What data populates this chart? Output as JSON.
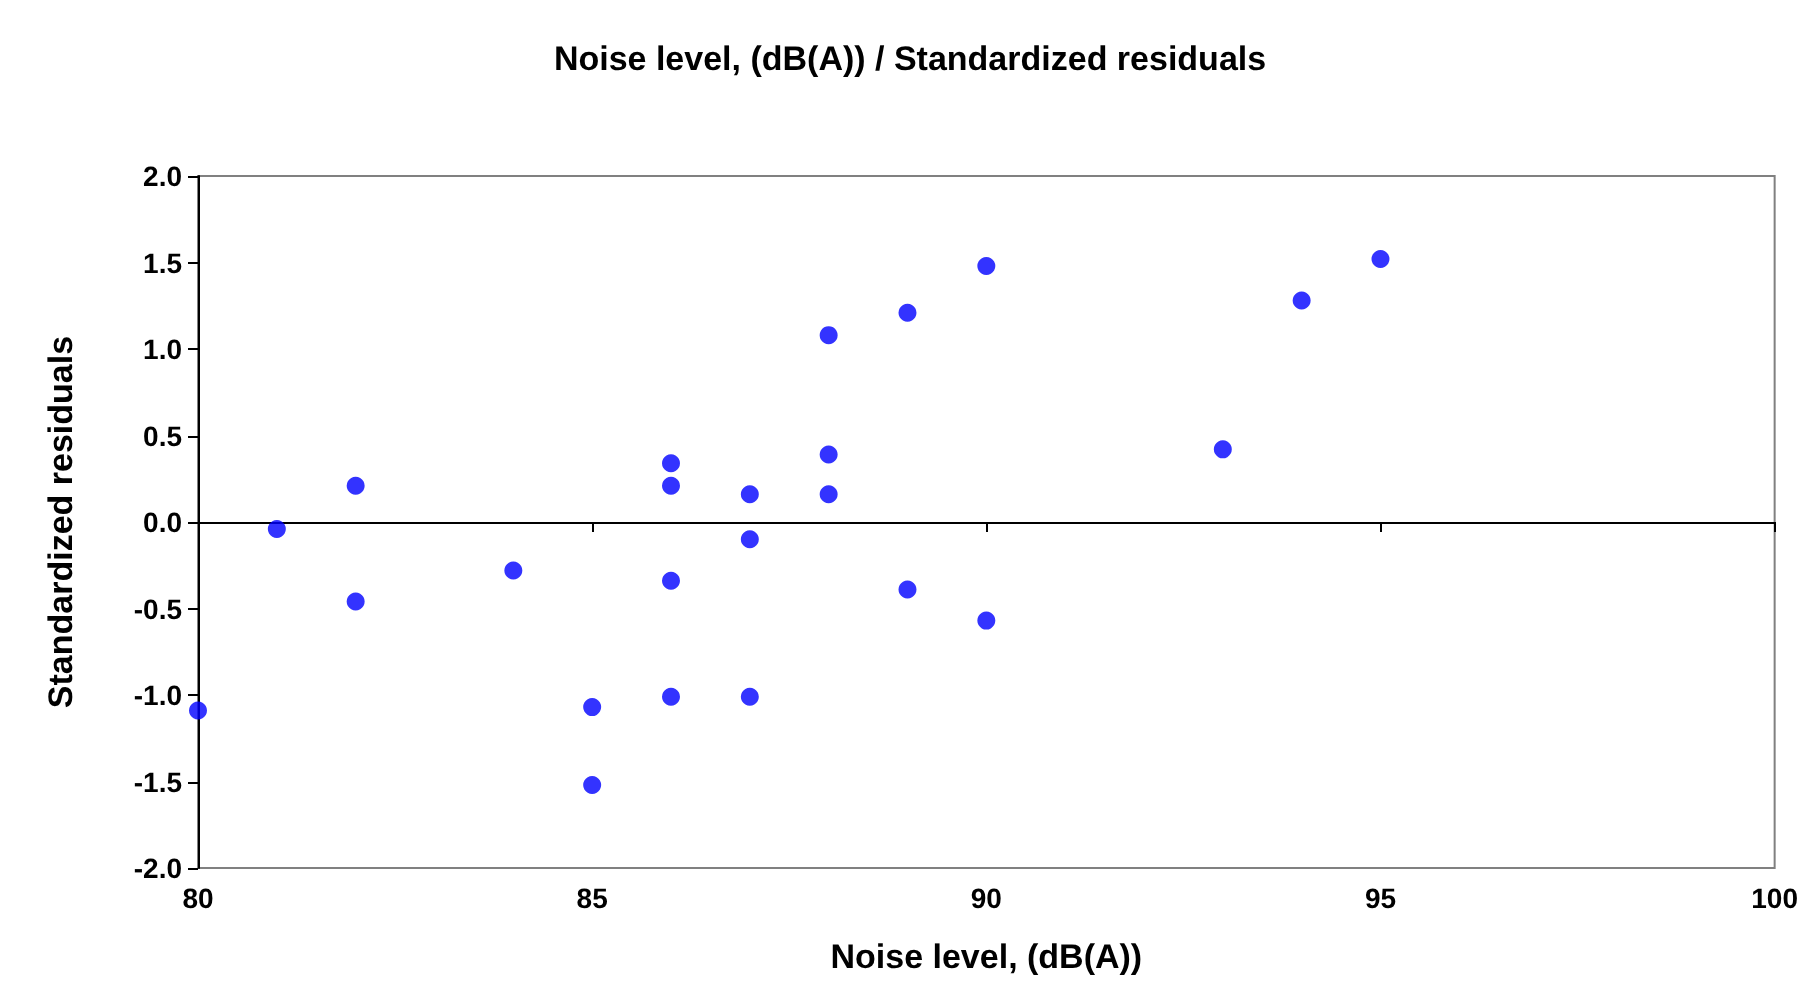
{
  "chart_data": {
    "type": "scatter",
    "title": "Noise level, (dB(A)) / Standardized residuals",
    "xlabel": "Noise level, (dB(A))",
    "ylabel": "Standardized residuals",
    "marker": "circle",
    "xlim": [
      80,
      100
    ],
    "xticks": [
      80,
      85,
      90,
      95,
      100
    ],
    "ylim": [
      -2,
      2
    ],
    "yticks": [
      {
        "value": -2,
        "label": "-2.0"
      },
      {
        "value": -1.5,
        "label": "-1.5"
      },
      {
        "value": -1,
        "label": "-1.0"
      },
      {
        "value": -0.5,
        "label": "-0.5"
      },
      {
        "value": 0,
        "label": "0.0"
      },
      {
        "value": 0.5,
        "label": "0.5"
      },
      {
        "value": 1,
        "label": "1.0"
      },
      {
        "value": 1.5,
        "label": "1.5"
      },
      {
        "value": 2,
        "label": "2.0"
      }
    ],
    "series": [
      {
        "color": "#0000ff",
        "x": [
          80,
          81,
          82,
          82,
          84,
          85,
          85,
          86,
          86,
          86,
          86,
          87,
          87,
          87,
          88,
          88,
          88,
          89,
          89,
          90,
          90,
          93,
          94,
          95
        ],
        "values": [
          -1.09,
          -0.04,
          0.21,
          -0.46,
          -0.28,
          -1.07,
          -1.52,
          0.34,
          0.21,
          -0.34,
          -1.01,
          0.16,
          -0.1,
          -1.01,
          1.08,
          0.39,
          0.16,
          1.21,
          -0.39,
          1.48,
          -0.57,
          0.42,
          1.28,
          1.52
        ]
      }
    ]
  }
}
